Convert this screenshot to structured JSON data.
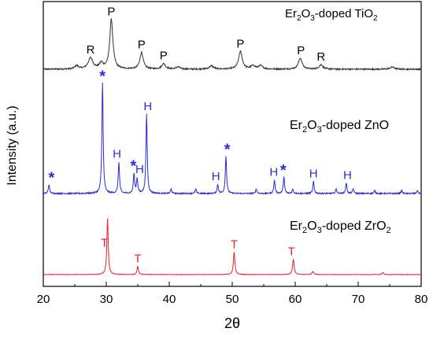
{
  "chart_data": {
    "type": "line",
    "xlabel": "2θ",
    "ylabel": "Intensity (a.u.)",
    "xlim": [
      20,
      80
    ],
    "x_ticks": [
      "20",
      "30",
      "40",
      "50",
      "60",
      "70",
      "80"
    ],
    "grid": false,
    "series": [
      {
        "name": "Er2O3-doped TiO2",
        "label_parts": [
          "Er",
          "2",
          "O",
          "3",
          "-doped TiO",
          "2"
        ],
        "color": "#333333",
        "baseline": 0.0,
        "noise": 0.012,
        "peaks": [
          {
            "x": 25.3,
            "h": 0.03,
            "w": 0.35
          },
          {
            "x": 27.5,
            "h": 0.1,
            "w": 0.45
          },
          {
            "x": 29.2,
            "h": 0.05,
            "w": 0.35
          },
          {
            "x": 30.8,
            "h": 0.45,
            "w": 0.3
          },
          {
            "x": 35.6,
            "h": 0.15,
            "w": 0.32
          },
          {
            "x": 39.1,
            "h": 0.05,
            "w": 0.35
          },
          {
            "x": 41.4,
            "h": 0.02,
            "w": 0.35
          },
          {
            "x": 46.7,
            "h": 0.03,
            "w": 0.4
          },
          {
            "x": 51.3,
            "h": 0.16,
            "w": 0.35
          },
          {
            "x": 53.3,
            "h": 0.03,
            "w": 0.4
          },
          {
            "x": 54.5,
            "h": 0.03,
            "w": 0.4
          },
          {
            "x": 60.8,
            "h": 0.1,
            "w": 0.35
          },
          {
            "x": 64.1,
            "h": 0.04,
            "w": 0.35
          },
          {
            "x": 75.4,
            "h": 0.02,
            "w": 0.4
          }
        ],
        "annotations": [
          {
            "text": "R",
            "x": 27.5
          },
          {
            "text": "P",
            "x": 30.8
          },
          {
            "text": "P",
            "x": 35.6
          },
          {
            "text": "P",
            "x": 39.1
          },
          {
            "text": "P",
            "x": 51.3
          },
          {
            "text": "P",
            "x": 60.9
          },
          {
            "text": "R",
            "x": 64.1
          }
        ]
      },
      {
        "name": "Er2O3-doped ZnO",
        "label_parts": [
          "Er",
          "2",
          "O",
          "3",
          "-doped ZnO",
          ""
        ],
        "color": "#2b2bd6",
        "baseline": 0.0,
        "noise": 0.008,
        "peaks": [
          {
            "x": 20.9,
            "h": 0.06,
            "w": 0.12
          },
          {
            "x": 29.4,
            "h": 0.74,
            "w": 0.12
          },
          {
            "x": 32.0,
            "h": 0.21,
            "w": 0.12
          },
          {
            "x": 34.4,
            "h": 0.13,
            "w": 0.12
          },
          {
            "x": 34.9,
            "h": 0.1,
            "w": 0.12
          },
          {
            "x": 36.4,
            "h": 0.53,
            "w": 0.12
          },
          {
            "x": 40.3,
            "h": 0.03,
            "w": 0.12
          },
          {
            "x": 44.2,
            "h": 0.03,
            "w": 0.12
          },
          {
            "x": 47.7,
            "h": 0.06,
            "w": 0.12
          },
          {
            "x": 49.0,
            "h": 0.25,
            "w": 0.12
          },
          {
            "x": 53.8,
            "h": 0.03,
            "w": 0.12
          },
          {
            "x": 56.7,
            "h": 0.09,
            "w": 0.12
          },
          {
            "x": 58.2,
            "h": 0.11,
            "w": 0.12
          },
          {
            "x": 59.6,
            "h": 0.03,
            "w": 0.12
          },
          {
            "x": 62.9,
            "h": 0.08,
            "w": 0.12
          },
          {
            "x": 66.5,
            "h": 0.03,
            "w": 0.12
          },
          {
            "x": 68.1,
            "h": 0.07,
            "w": 0.12
          },
          {
            "x": 69.2,
            "h": 0.03,
            "w": 0.12
          },
          {
            "x": 72.6,
            "h": 0.02,
            "w": 0.12
          },
          {
            "x": 76.9,
            "h": 0.02,
            "w": 0.12
          },
          {
            "x": 79.4,
            "h": 0.02,
            "w": 0.12
          }
        ],
        "annotations": [
          {
            "text": "*",
            "x": 21.3
          },
          {
            "text": "*",
            "x": 29.4
          },
          {
            "text": "H",
            "x": 31.7
          },
          {
            "text": "*",
            "x": 34.3
          },
          {
            "text": "H",
            "x": 35.3
          },
          {
            "text": "H",
            "x": 36.6
          },
          {
            "text": "H",
            "x": 47.4
          },
          {
            "text": "*",
            "x": 49.2
          },
          {
            "text": "H",
            "x": 56.6
          },
          {
            "text": "*",
            "x": 58.1
          },
          {
            "text": "H",
            "x": 62.9
          },
          {
            "text": "H",
            "x": 68.3
          }
        ]
      },
      {
        "name": "Er2O3-doped ZrO2",
        "label_parts": [
          "Er",
          "2",
          "O",
          "3",
          "-doped ZrO",
          "2"
        ],
        "color": "#e8202a",
        "baseline": 0.0,
        "noise": 0.004,
        "peaks": [
          {
            "x": 30.2,
            "h": 0.55,
            "w": 0.13
          },
          {
            "x": 35.0,
            "h": 0.08,
            "w": 0.13
          },
          {
            "x": 50.3,
            "h": 0.22,
            "w": 0.14
          },
          {
            "x": 59.7,
            "h": 0.15,
            "w": 0.15
          },
          {
            "x": 62.8,
            "h": 0.03,
            "w": 0.15
          },
          {
            "x": 73.9,
            "h": 0.02,
            "w": 0.15
          }
        ],
        "annotations": [
          {
            "text": "T",
            "x": 29.7
          },
          {
            "text": "T",
            "x": 35.0
          },
          {
            "text": "T",
            "x": 50.3
          },
          {
            "text": "T",
            "x": 59.4
          }
        ]
      }
    ]
  }
}
